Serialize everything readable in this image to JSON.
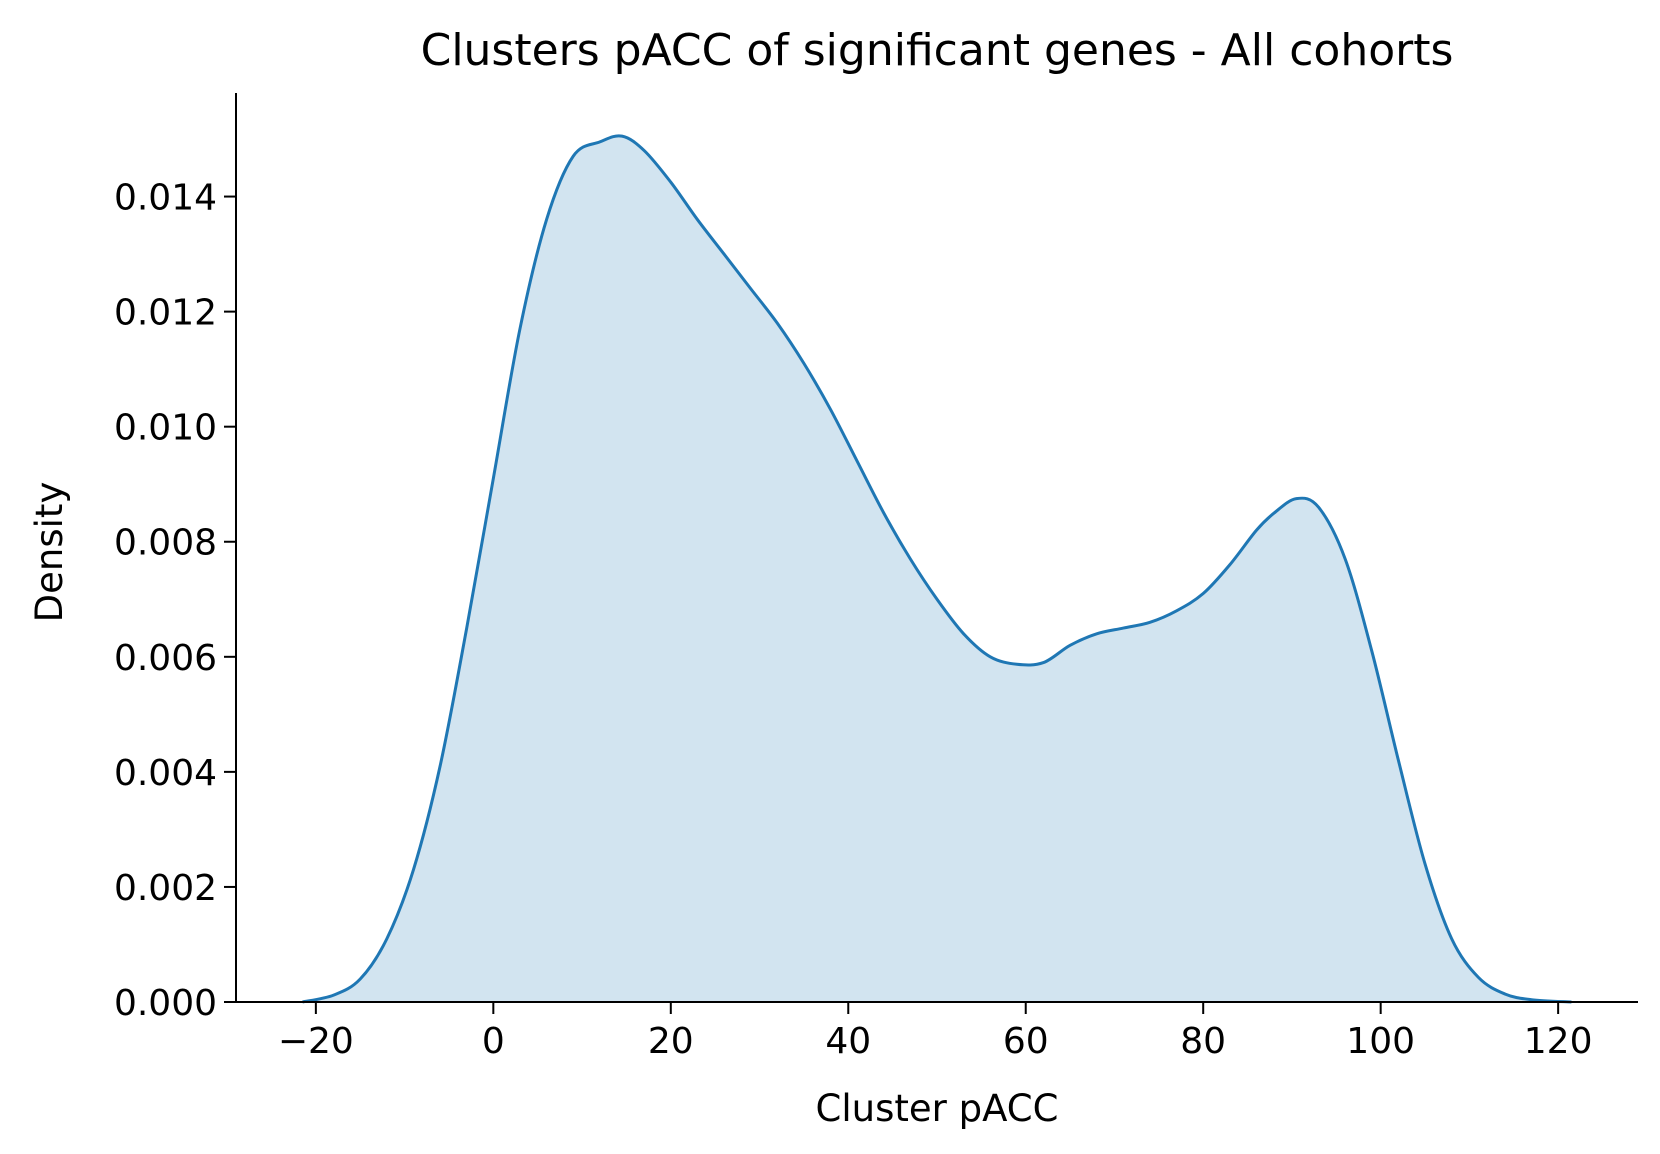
{
  "chart_data": {
    "type": "area",
    "title": "Clusters pACC of significant genes - All cohorts",
    "xlabel": "Cluster pACC",
    "ylabel": "Density",
    "xlim": [
      -29,
      129
    ],
    "ylim": [
      0,
      0.0158
    ],
    "xticks": [
      -20,
      0,
      20,
      40,
      60,
      80,
      100,
      120
    ],
    "xtick_labels": [
      "−20",
      "0",
      "20",
      "40",
      "60",
      "80",
      "100",
      "120"
    ],
    "yticks": [
      0,
      0.002,
      0.004,
      0.006,
      0.008,
      0.01,
      0.012,
      0.014
    ],
    "ytick_labels": [
      "0.000",
      "0.002",
      "0.004",
      "0.006",
      "0.008",
      "0.010",
      "0.012",
      "0.014"
    ],
    "grid": false,
    "legend": "none",
    "series": [
      {
        "color": "#1f77b4",
        "fill_color": "#1f77b4",
        "fill_opacity": 0.2,
        "x": [
          -21.5,
          -18,
          -15,
          -12,
          -9,
          -6,
          -3,
          0,
          3,
          6,
          9,
          12,
          14.5,
          17,
          20,
          23,
          26,
          29,
          32,
          35,
          38,
          41,
          44,
          47,
          50,
          53,
          56,
          59,
          62,
          65,
          68,
          71,
          74,
          77,
          80,
          83,
          86,
          88,
          90.5,
          93,
          96,
          99,
          102,
          105,
          108,
          111,
          114,
          117,
          121.5
        ],
        "y": [
          0,
          0.00012,
          0.0004,
          0.0011,
          0.0023,
          0.0041,
          0.0065,
          0.0091,
          0.0117,
          0.0136,
          0.0147,
          0.01495,
          0.01505,
          0.0148,
          0.01425,
          0.0136,
          0.013,
          0.0124,
          0.0118,
          0.0111,
          0.0103,
          0.0094,
          0.0085,
          0.0077,
          0.007,
          0.0064,
          0.006,
          0.00587,
          0.0059,
          0.0062,
          0.0064,
          0.0065,
          0.0066,
          0.0068,
          0.0071,
          0.0076,
          0.0082,
          0.0085,
          0.00875,
          0.0086,
          0.0077,
          0.0061,
          0.0042,
          0.0024,
          0.0011,
          0.00043,
          0.00014,
          4e-05,
          0
        ]
      }
    ]
  }
}
